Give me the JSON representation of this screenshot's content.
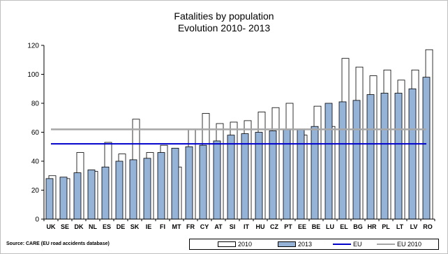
{
  "chart_data": {
    "type": "bar",
    "title": "Fatalities by population",
    "subtitle": "Evolution 2010- 2013",
    "categories": [
      "UK",
      "SE",
      "DK",
      "NL",
      "ES",
      "DE",
      "SK",
      "IE",
      "FI",
      "MT",
      "FR",
      "CY",
      "AT",
      "SI",
      "IT",
      "HU",
      "CZ",
      "PT",
      "EE",
      "BE",
      "LU",
      "EL",
      "BG",
      "HR",
      "PL",
      "LT",
      "LV",
      "RO"
    ],
    "series": [
      {
        "name": "2010",
        "color": "#ffffff",
        "values": [
          30,
          28,
          46,
          33,
          53,
          45,
          69,
          46,
          51,
          36,
          62,
          73,
          66,
          67,
          68,
          74,
          77,
          80,
          58,
          78,
          64,
          111,
          105,
          99,
          103,
          96,
          103,
          117
        ]
      },
      {
        "name": "2013",
        "color": "#95b3d7",
        "values": [
          28,
          29,
          32,
          34,
          36,
          40,
          41,
          42,
          46,
          49,
          50,
          51,
          54,
          58,
          59,
          60,
          61,
          62,
          62,
          64,
          80,
          81,
          82,
          86,
          87,
          87,
          90,
          98
        ]
      }
    ],
    "reference_lines": [
      {
        "name": "EU",
        "value": 52,
        "color": "#0000cc"
      },
      {
        "name": "EU 2010",
        "value": 62,
        "color": "#a6a6a6"
      }
    ],
    "ylim": [
      0,
      120
    ],
    "yticks": [
      0,
      20,
      40,
      60,
      80,
      100,
      120
    ],
    "grid": false,
    "legend_position": "bottom"
  },
  "source": "Source: CARE (EU road accidents database)"
}
